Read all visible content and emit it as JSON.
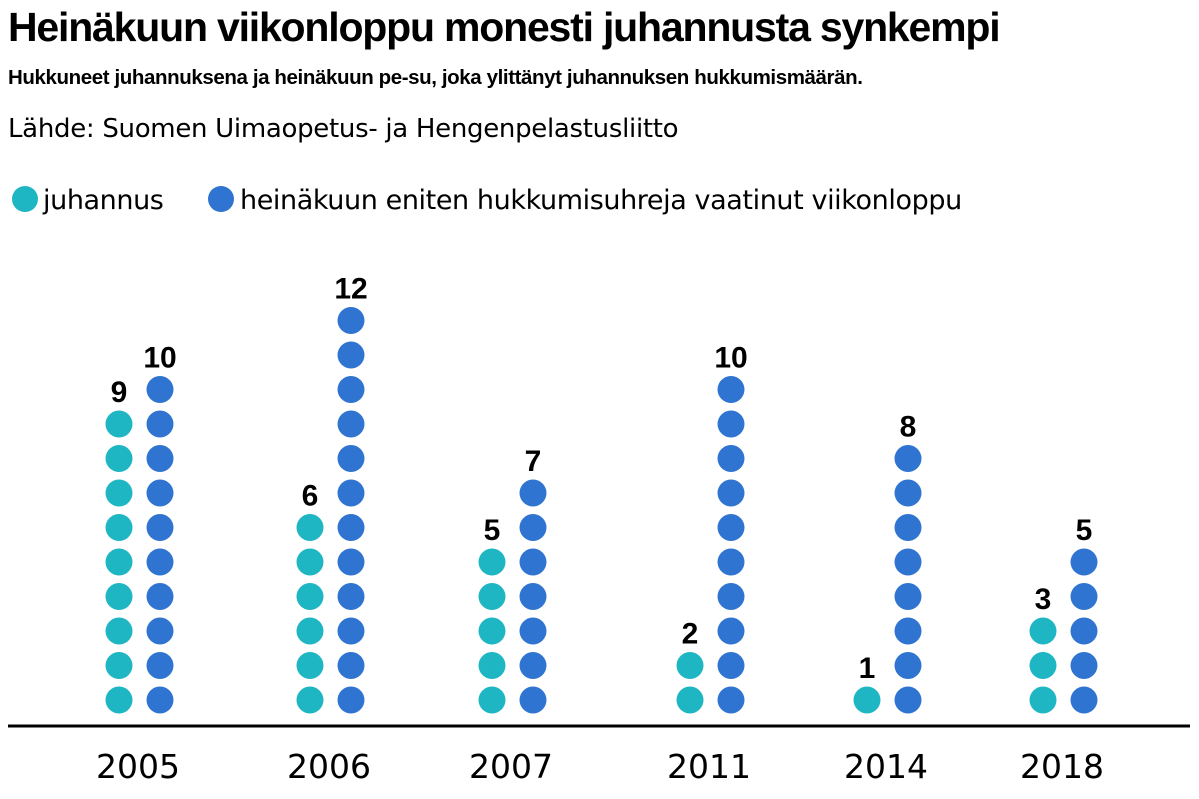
{
  "chart_data": {
    "type": "bar",
    "title": "Heinäkuun viikonloppu monesti juhannusta synkempi",
    "subtitle": "Hukkuneet juhannuksena ja heinäkuun pe-su, joka ylittänyt juhannuksen hukkumismäärän.",
    "source": "Lähde: Suomen Uimaopetus- ja Hengenpelastusliitto",
    "categories": [
      "2005",
      "2006",
      "2007",
      "2011",
      "2014",
      "2018"
    ],
    "series": [
      {
        "name": "juhannus",
        "values": [
          9,
          6,
          5,
          2,
          1,
          3
        ],
        "color": "#1fb6c4"
      },
      {
        "name": "heinäkuun eniten hukkumisuhreja vaatinut viikonloppu",
        "values": [
          10,
          12,
          7,
          10,
          8,
          5
        ],
        "color": "#2f74d0"
      }
    ],
    "unit_per_dot": 1,
    "legend_position": "top-left",
    "grid": false
  }
}
